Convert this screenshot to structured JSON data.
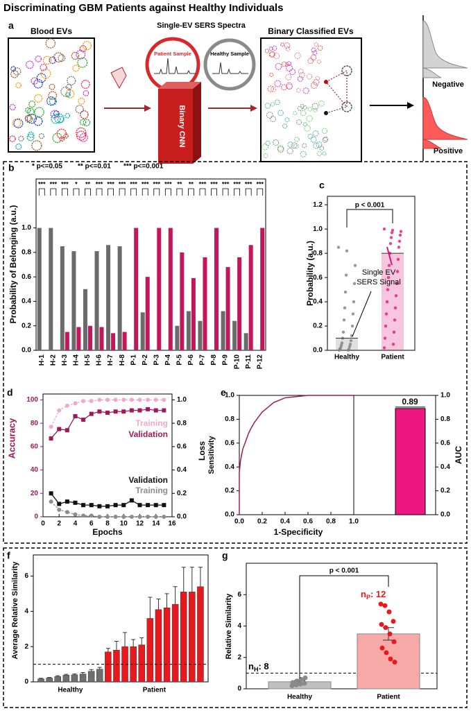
{
  "title": "Discriminating GBM Patients against Healthy Individuals",
  "panel_a": {
    "label": "a",
    "blood_evs": "Blood EVs",
    "spectra_title": "Single-EV SERS Spectra",
    "patient_sample": "Patient Sample",
    "healthy_sample": "Healthy Sample",
    "cnn": "Binary CNN",
    "classified": "Binary Classified EVs",
    "negative": "Negative",
    "positive": "Positive"
  },
  "chart_data": [
    {
      "panel": "b",
      "type": "grouped_bar",
      "y_label": "Probability of Belonging (a.u.)",
      "legend_text": [
        "* p<=0.05",
        "** p<=0.01",
        "*** p<=0.001"
      ],
      "categories": [
        "H-1",
        "H-2",
        "H-3",
        "H-4",
        "H-5",
        "H-6",
        "H-7",
        "H-8",
        "P-1",
        "P-2",
        "P-3",
        "P-4",
        "P-5",
        "P-6",
        "P-7",
        "P-8",
        "P-9",
        "P-10",
        "P-11",
        "P-12"
      ],
      "series": [
        {
          "color": "#6b6b6b",
          "values": [
            1.0,
            1.0,
            0.85,
            0.81,
            0.5,
            0.81,
            0.86,
            0.85,
            0.0,
            0.31,
            0.0,
            0.0,
            0.2,
            0.32,
            0.24,
            0.0,
            0.32,
            0.24,
            0.14,
            0.0
          ]
        },
        {
          "color": "#c2185b",
          "values": [
            0.0,
            0.0,
            0.15,
            0.19,
            0.2,
            0.19,
            0.14,
            0.15,
            1.0,
            0.6,
            1.0,
            1.0,
            0.8,
            0.59,
            0.76,
            1.0,
            0.68,
            0.76,
            0.86,
            1.0
          ]
        }
      ],
      "significance": [
        "***",
        "***",
        "***",
        "*",
        "**",
        "***",
        "***",
        "***",
        "***",
        "***",
        "***",
        "***",
        "**",
        "**",
        "***",
        "***",
        "***",
        "***",
        "***",
        "***"
      ],
      "ylim": [
        0,
        1.4
      ],
      "yticks": [
        {
          "value": 0,
          "label": "0.0"
        },
        0.2,
        0.4,
        0.6,
        0.8,
        {
          "value": 1,
          "label": "1.0"
        }
      ]
    },
    {
      "panel": "c",
      "type": "bar_scatter",
      "y_label": "Probability (a.u.)",
      "categories": [
        "Healthy",
        "Patient"
      ],
      "values": [
        0.1,
        0.8
      ],
      "colors": [
        "#7f7f7f",
        "#e0197a"
      ],
      "points": [
        [
          0.85,
          0.82,
          0.7,
          0.62,
          0.55,
          0.48,
          0.4,
          0.35,
          0.3,
          0.25,
          0.2,
          0.15,
          0.12,
          0.1,
          0.08,
          0.06,
          0.05,
          0.04,
          0.03,
          0.02,
          0.01,
          0.01,
          0.0,
          0.0
        ],
        [
          1.0,
          0.99,
          0.98,
          0.97,
          0.95,
          0.93,
          0.9,
          0.88,
          0.85,
          0.8,
          0.75,
          0.7,
          0.65,
          0.6,
          0.55,
          0.5,
          0.45,
          0.4,
          0.35,
          0.3,
          0.25,
          0.2,
          0.15,
          0.1,
          0.05,
          0.02
        ]
      ],
      "annotation": "p < 0.001",
      "callout": [
        "Single EV",
        "SERS Signal"
      ],
      "ylim": [
        0,
        1.27
      ],
      "yticks": [
        {
          "value": 0,
          "label": "0.0"
        },
        0.2,
        0.4,
        0.6,
        0.8,
        {
          "value": 1,
          "label": "1.0"
        },
        1.2
      ]
    },
    {
      "panel": "d",
      "type": "line",
      "x": [
        1,
        2,
        3,
        4,
        5,
        6,
        7,
        8,
        9,
        10,
        11,
        12,
        13,
        14,
        15
      ],
      "xlim": [
        0,
        16
      ],
      "xticks": [
        0,
        2,
        4,
        6,
        8,
        10,
        12,
        14,
        16
      ],
      "ylim": [
        0,
        105
      ],
      "yticks": [
        0,
        20,
        40,
        60,
        80,
        100
      ],
      "y2lim": [
        0,
        1.05
      ],
      "y2ticks": [
        {
          "value": 0,
          "label": "0.0"
        },
        0.2,
        0.4,
        0.6,
        0.8,
        {
          "value": 1,
          "label": "1.0"
        }
      ],
      "x_label": "Epochs",
      "y_label": "Accuracy",
      "y2_label": "Loss",
      "series": [
        {
          "name": "Training",
          "color": "#f2a7cc",
          "values": [
            77,
            91,
            95,
            97,
            99,
            99,
            100,
            100,
            100,
            100,
            100,
            100,
            100,
            100,
            100
          ]
        },
        {
          "name": "Validation",
          "color": "#a0185c",
          "values": [
            67,
            75,
            74,
            86,
            83,
            88,
            90,
            89,
            90,
            90,
            91,
            91,
            92,
            91,
            91
          ]
        },
        {
          "name": "Validation",
          "color": "#111111",
          "axis": "y2",
          "values": [
            0.2,
            0.11,
            0.13,
            0.12,
            0.1,
            0.1,
            0.09,
            0.09,
            0.1,
            0.1,
            0.14,
            0.1,
            0.1,
            0.1,
            0.1
          ]
        },
        {
          "name": "Training",
          "color": "#8c8c8c",
          "axis": "y2",
          "values": [
            0.13,
            0.06,
            0.04,
            0.02,
            0.01,
            0.01,
            0.0,
            0.0,
            0.0,
            0.0,
            0.0,
            0.0,
            0.0,
            0.0,
            0.0
          ]
        }
      ]
    },
    {
      "panel": "e",
      "type": "roc",
      "x_label": "1-Specificity",
      "y_label": "Sensitivity",
      "series": [
        {
          "color": "#a0185c",
          "x": [
            0,
            0,
            0.01,
            0.03,
            0.05,
            0.08,
            0.1,
            0.13,
            0.16,
            0.2,
            0.25,
            0.3,
            0.35,
            0.4,
            0.5,
            0.6,
            1.0
          ],
          "values": [
            0,
            0.35,
            0.45,
            0.55,
            0.6,
            0.68,
            0.72,
            0.77,
            0.81,
            0.86,
            0.9,
            0.94,
            0.96,
            0.98,
            0.99,
            1.0,
            1.0
          ]
        }
      ],
      "xlim": [
        0,
        1
      ],
      "xticks": [
        {
          "value": 0,
          "label": "0.0"
        },
        0.2,
        0.4,
        0.6,
        0.8,
        {
          "value": 1,
          "label": "1.0"
        }
      ],
      "ylim": [
        0,
        1
      ],
      "yticks": [
        {
          "value": 0,
          "label": "0.0"
        },
        0.2,
        0.4,
        0.6,
        0.8,
        {
          "value": 1,
          "label": "1.0"
        }
      ],
      "auc": {
        "value": 0.89,
        "color": "#ee1680",
        "y_label": "AUC",
        "ylim": [
          0,
          1
        ],
        "yticks": [
          {
            "value": 0,
            "label": "0.0"
          },
          0.2,
          0.4,
          0.6,
          0.8,
          {
            "value": 1,
            "label": "1.0"
          }
        ]
      }
    },
    {
      "panel": "f",
      "type": "bar",
      "y_label": "Average Relative Similarity",
      "series": [
        {
          "name": "Healthy",
          "color": "#6e6e6e",
          "values": [
            0.17,
            0.22,
            0.3,
            0.38,
            0.4,
            0.45,
            0.6,
            0.72
          ],
          "errors": [
            0.03,
            0.03,
            0.05,
            0.05,
            0.05,
            0.08,
            0.1,
            0.1
          ]
        },
        {
          "name": "Patient",
          "color": "#e8191e",
          "values": [
            1.7,
            1.8,
            2.0,
            2.0,
            2.1,
            3.6,
            4.1,
            4.2,
            4.4,
            5.1,
            5.1,
            5.4
          ],
          "errors": [
            0.2,
            0.5,
            0.8,
            0.4,
            0.4,
            1.2,
            0.6,
            0.8,
            1.0,
            1.4,
            1.4,
            1.1
          ]
        }
      ],
      "reference_line": 1,
      "ylim": [
        0,
        7.2
      ],
      "yticks": [
        0,
        2,
        4,
        6
      ]
    },
    {
      "panel": "g",
      "type": "bar_scatter",
      "y_label": "Relative Similarity",
      "categories": [
        "Healthy",
        "Patient"
      ],
      "values": [
        0.45,
        3.5
      ],
      "errors": [
        0.08,
        0.4
      ],
      "colors": [
        "#bfbfbf",
        "#f7a9a8"
      ],
      "point_colors": [
        "#8a8a8a",
        "#e8191e"
      ],
      "points": [
        [
          0.2,
          0.25,
          0.3,
          0.35,
          0.4,
          0.5,
          0.6,
          0.7
        ],
        [
          5.4,
          5.3,
          4.9,
          4.3,
          4.1,
          3.9,
          3.5,
          3.0,
          2.6,
          2.3,
          1.9,
          1.7
        ]
      ],
      "annotation": "p < 0.001",
      "counts": [
        {
          "n": "n",
          "sub": "H",
          "text": ": 8",
          "color": "#000000"
        },
        {
          "n": "n",
          "sub": "P",
          "text": ": 12",
          "color": "#e8191e"
        }
      ],
      "reference_line": 1,
      "ylim": [
        0,
        8
      ],
      "yticks": [
        0,
        2,
        4,
        6
      ]
    }
  ]
}
